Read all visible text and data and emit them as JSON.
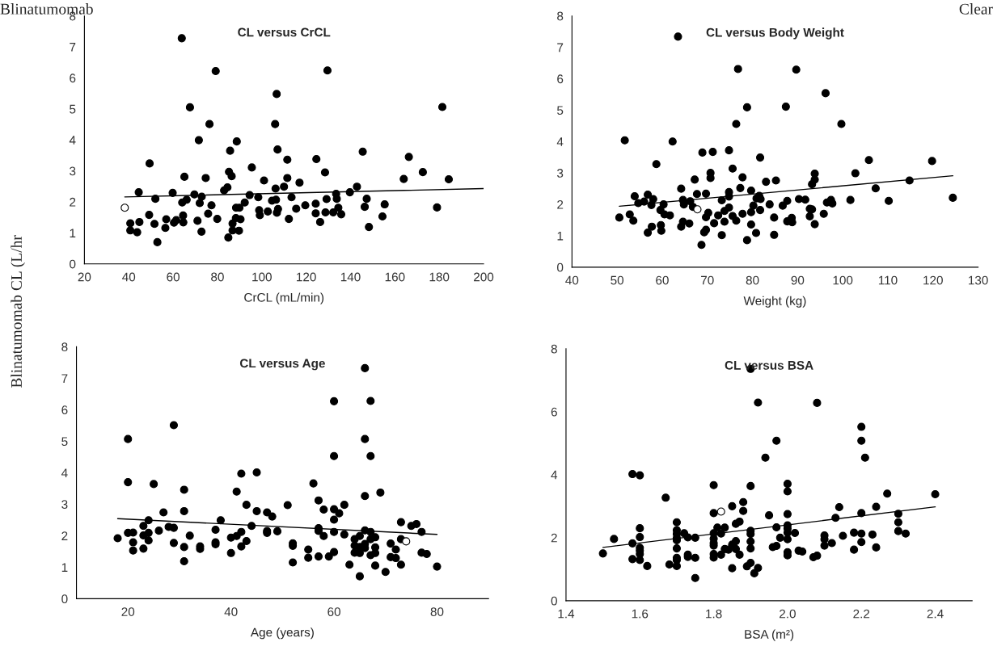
{
  "chart_data": [
    {
      "type": "scatter",
      "title": "CL versus CrCL",
      "xlabel": "CrCL (mL/min)",
      "ylabel": "Blinatumomab CL (L/hr",
      "annotations": [
        "Blinatumomab",
        "Clear"
      ],
      "marker": "circle",
      "xlim": [
        20,
        200
      ],
      "xticks": [
        20,
        40,
        60,
        80,
        100,
        120,
        140,
        160,
        180,
        200
      ],
      "ylim": [
        0,
        8
      ],
      "yticks": [
        0,
        1,
        2,
        3,
        4,
        5,
        6,
        7,
        8
      ],
      "series": [
        {
          "color": "#000000",
          "x": [
            63.9,
            79.2,
            129.6,
            106.7,
            67.6,
            181.4,
            76.4,
            106.0,
            71.6,
            88.7,
            85.7,
            107.1,
            145.5,
            49.4,
            95.5,
            111.5,
            124.6,
            166.3,
            172.6,
            128.5,
            85.2,
            86.4,
            65.1,
            74.7,
            101.0,
            111.5,
            164.0,
            184.3,
            117.0,
            142.9,
            84.5,
            83.0,
            110.0,
            106.2,
            44.5,
            59.8,
            139.7,
            69.6,
            94.5,
            133.5,
            72.9,
            98.4,
            113.4,
            52.0,
            129.2,
            133.8,
            147.3,
            66.1,
            106.4,
            64.1,
            72.0,
            92.3,
            104.6,
            124.3,
            119.6,
            155.4,
            77.3,
            88.4,
            89.9,
            134.5,
            146.4,
            179.0,
            98.8,
            102.7,
            107.3,
            115.5,
            75.8,
            49.2,
            124.3,
            128.7,
            132.2,
            135.8,
            154.4,
            64.5,
            99.1,
            106.8,
            56.9,
            61.4,
            79.9,
            88.3,
            90.4,
            112.2,
            44.8,
            40.7,
            51.6,
            64.6,
            71.0,
            60.4,
            86.8,
            126.3,
            40.7,
            43.8,
            56.5,
            72.8,
            86.8,
            89.7,
            148.3,
            84.9,
            52.9
          ],
          "values": [
            7.28,
            6.22,
            6.24,
            5.48,
            5.05,
            5.06,
            4.51,
            4.51,
            3.99,
            3.95,
            3.65,
            3.69,
            3.62,
            3.24,
            3.11,
            3.36,
            3.38,
            3.45,
            2.96,
            2.95,
            2.97,
            2.83,
            2.81,
            2.77,
            2.69,
            2.77,
            2.74,
            2.73,
            2.62,
            2.49,
            2.47,
            2.37,
            2.49,
            2.43,
            2.31,
            2.29,
            2.31,
            2.24,
            2.22,
            2.26,
            2.17,
            2.15,
            2.15,
            2.1,
            2.09,
            2.1,
            2.1,
            2.07,
            2.07,
            1.98,
            1.96,
            1.98,
            2.04,
            1.94,
            1.89,
            1.92,
            1.89,
            1.81,
            1.81,
            1.81,
            1.84,
            1.82,
            1.73,
            1.69,
            1.77,
            1.78,
            1.62,
            1.58,
            1.63,
            1.66,
            1.66,
            1.6,
            1.53,
            1.56,
            1.57,
            1.65,
            1.44,
            1.41,
            1.45,
            1.48,
            1.44,
            1.45,
            1.35,
            1.31,
            1.29,
            1.34,
            1.39,
            1.33,
            1.3,
            1.35,
            1.08,
            1.02,
            1.16,
            1.04,
            1.08,
            1.07,
            1.19,
            0.85,
            0.7
          ]
        },
        {
          "color": "#ffffff",
          "x": [
            38.2
          ],
          "values": [
            1.81
          ]
        },
        {
          "type": "line",
          "marker": "none",
          "color": "#000000",
          "x": [
            38.2,
            200
          ],
          "values": [
            2.16,
            2.43
          ]
        }
      ]
    },
    {
      "type": "scatter",
      "title": "CL versus Body Weight",
      "xlabel": "Weight (kg)",
      "marker": "circle",
      "xlim": [
        40,
        130
      ],
      "xticks": [
        40,
        50,
        60,
        70,
        80,
        90,
        100,
        110,
        120,
        130
      ],
      "ylim": [
        0,
        8
      ],
      "yticks": [
        0,
        1,
        2,
        3,
        4,
        5,
        6,
        7,
        8
      ],
      "series": [
        {
          "color": "#000000",
          "x": [
            63.5,
            51.7,
            62.3,
            58.7,
            68.9,
            71.2,
            74.8,
            76.4,
            76.8,
            89.7,
            78.8,
            87.4,
            96.2,
            99.7,
            81.7,
            75.6,
            105.8,
            119.8,
            70.7,
            70.7,
            93.8,
            102.8,
            77.8,
            67.2,
            83.0,
            85.2,
            93.8,
            93.2,
            114.8,
            64.2,
            77.3,
            79.7,
            107.3,
            74.8,
            74.8,
            67.7,
            69.7,
            56.8,
            53.9,
            58.0,
            81.5,
            80.9,
            81.8,
            90.3,
            91.7,
            124.4,
            64.6,
            66.2,
            73.2,
            87.7,
            97.4,
            101.7,
            110.2,
            56.0,
            54.7,
            57.6,
            60.3,
            64.8,
            83.8,
            86.7,
            96.5,
            97.7,
            66.8,
            80.2,
            74.8,
            59.6,
            81.7,
            92.7,
            93.2,
            73.8,
            70.2,
            77.8,
            79.7,
            95.8,
            52.8,
            60.5,
            61.7,
            72.4,
            75.6,
            69.7,
            84.8,
            88.7,
            92.7,
            50.5,
            53.6,
            64.6,
            73.8,
            76.4,
            71.5,
            87.7,
            88.8,
            66.0,
            59.7,
            79.7,
            93.8,
            57.7,
            64.2,
            59.8,
            69.7,
            56.8,
            69.3,
            80.8,
            73.2,
            84.8,
            78.8,
            68.7
          ],
          "values": [
            7.34,
            4.04,
            4.0,
            3.28,
            3.65,
            3.67,
            3.72,
            4.56,
            6.31,
            6.29,
            5.09,
            5.11,
            5.54,
            4.56,
            3.49,
            3.14,
            3.41,
            3.38,
            3.0,
            2.84,
            2.98,
            2.99,
            2.86,
            2.79,
            2.72,
            2.76,
            2.79,
            2.64,
            2.76,
            2.5,
            2.52,
            2.44,
            2.51,
            2.39,
            2.25,
            2.33,
            2.34,
            2.31,
            2.26,
            2.17,
            2.27,
            2.19,
            2.17,
            2.17,
            2.15,
            2.21,
            2.14,
            2.1,
            2.13,
            2.11,
            2.14,
            2.14,
            2.11,
            2.09,
            2.04,
            1.98,
            2.0,
            2.0,
            2.0,
            1.96,
            2.06,
            2.03,
            1.92,
            1.96,
            1.9,
            1.82,
            1.82,
            1.86,
            1.84,
            1.79,
            1.73,
            1.7,
            1.75,
            1.7,
            1.68,
            1.68,
            1.65,
            1.65,
            1.63,
            1.59,
            1.58,
            1.57,
            1.62,
            1.58,
            1.48,
            1.45,
            1.45,
            1.48,
            1.4,
            1.46,
            1.43,
            1.39,
            1.34,
            1.36,
            1.37,
            1.29,
            1.29,
            1.16,
            1.19,
            1.1,
            1.11,
            1.09,
            1.02,
            1.03,
            0.86,
            0.71
          ]
        },
        {
          "color": "#ffffff",
          "x": [
            67.8
          ],
          "values": [
            1.84
          ]
        },
        {
          "type": "line",
          "marker": "none",
          "color": "#000000",
          "x": [
            50.5,
            124.4
          ],
          "values": [
            1.94,
            2.91
          ]
        }
      ]
    },
    {
      "type": "scatter",
      "title": "CL versus Age",
      "xlabel": "Age (years)",
      "marker": "circle",
      "xlim": [
        10,
        90
      ],
      "xticks": [
        20,
        40,
        60,
        80
      ],
      "ylim": [
        0,
        8
      ],
      "yticks": [
        0,
        1,
        2,
        3,
        4,
        5,
        6,
        7,
        8
      ],
      "series": [
        {
          "color": "#000000",
          "x": [
            66.0,
            60.0,
            67.1,
            28.9,
            20.0,
            66.0,
            60.0,
            67.1,
            45.0,
            42.0,
            20.0,
            25.0,
            56.0,
            41.1,
            30.9,
            69.0,
            66.0,
            57.0,
            51.0,
            43.0,
            62.0,
            26.9,
            30.9,
            45.0,
            47.0,
            58.0,
            60.0,
            61.0,
            48.0,
            60.0,
            24.0,
            38.0,
            73.0,
            75.0,
            76.0,
            23.0,
            44.0,
            27.9,
            28.9,
            37.0,
            26.0,
            57.0,
            57.0,
            66.0,
            67.1,
            47.0,
            47.0,
            49.0,
            60.0,
            77.0,
            20.0,
            21.0,
            24.0,
            42.0,
            62.0,
            41.1,
            40.0,
            23.0,
            32.0,
            58.0,
            65.0,
            68.0,
            18.0,
            64.0,
            67.1,
            73.0,
            24.0,
            43.0,
            37.0,
            21.0,
            28.9,
            71.0,
            66.0,
            37.0,
            52.0,
            52.0,
            64.0,
            34.0,
            42.0,
            30.9,
            65.0,
            68.0,
            66.0,
            34.0,
            55.0,
            72.0,
            23.0,
            21.0,
            60.0,
            40.0,
            64.0,
            65.0,
            68.0,
            77.0,
            78.0,
            67.1,
            57.0,
            59.0,
            55.0,
            71.0,
            72.0,
            30.9,
            52.0,
            63.0,
            73.0,
            68.0,
            80.0,
            70.0,
            65.0
          ],
          "values": [
            7.32,
            6.27,
            6.28,
            5.51,
            5.07,
            5.07,
            4.53,
            4.53,
            4.01,
            3.97,
            3.7,
            3.64,
            3.66,
            3.4,
            3.46,
            3.37,
            3.26,
            3.12,
            2.97,
            2.98,
            2.98,
            2.74,
            2.78,
            2.78,
            2.74,
            2.83,
            2.84,
            2.71,
            2.61,
            2.51,
            2.49,
            2.49,
            2.43,
            2.31,
            2.37,
            2.31,
            2.31,
            2.28,
            2.25,
            2.19,
            2.16,
            2.24,
            2.15,
            2.17,
            2.12,
            2.15,
            2.09,
            2.14,
            2.12,
            2.12,
            2.09,
            2.1,
            2.09,
            2.12,
            2.04,
            1.99,
            1.94,
            2.01,
            2.0,
            1.99,
            1.99,
            1.95,
            1.92,
            1.89,
            1.89,
            1.89,
            1.85,
            1.83,
            1.79,
            1.79,
            1.77,
            1.75,
            1.74,
            1.73,
            1.76,
            1.68,
            1.69,
            1.66,
            1.66,
            1.64,
            1.64,
            1.63,
            1.61,
            1.58,
            1.56,
            1.56,
            1.59,
            1.53,
            1.48,
            1.45,
            1.46,
            1.45,
            1.45,
            1.46,
            1.42,
            1.38,
            1.34,
            1.34,
            1.3,
            1.32,
            1.29,
            1.19,
            1.15,
            1.08,
            1.08,
            1.05,
            1.02,
            0.85,
            0.71
          ]
        },
        {
          "color": "#ffffff",
          "x": [
            74.0
          ],
          "values": [
            1.82
          ]
        },
        {
          "type": "line",
          "marker": "none",
          "color": "#000000",
          "x": [
            18,
            80
          ],
          "values": [
            2.54,
            2.04
          ]
        }
      ]
    },
    {
      "type": "scatter",
      "title": "CL versus BSA",
      "xlabel": "BSA (m²)",
      "marker": "circle",
      "xlim": [
        1.4,
        2.5
      ],
      "xticks": [
        {
          "value": 1.4,
          "label": "1.4"
        },
        {
          "value": 1.6,
          "label": "1.6"
        },
        {
          "value": 1.8,
          "label": "1.8"
        },
        {
          "value": 2.0,
          "label": "2.0"
        },
        {
          "value": 2.2,
          "label": "2.2"
        },
        {
          "value": 2.4,
          "label": "2.4"
        }
      ],
      "ylim": [
        0,
        8
      ],
      "yticks": [
        0,
        2,
        4,
        6,
        8
      ],
      "series": [
        {
          "color": "#000000",
          "x": [
            1.9,
            1.92,
            2.08,
            2.2,
            1.97,
            2.2,
            1.94,
            2.21,
            1.58,
            1.6,
            1.8,
            1.9,
            2.0,
            2.0,
            1.67,
            2.27,
            2.4,
            1.88,
            1.85,
            2.14,
            2.24,
            1.88,
            1.8,
            2.2,
            2.3,
            1.95,
            2.0,
            2.13,
            1.87,
            1.86,
            1.7,
            2.3,
            2.0,
            1.6,
            1.81,
            1.83,
            1.97,
            2.0,
            1.9,
            1.7,
            2.3,
            1.72,
            1.8,
            1.82,
            2.0,
            2.02,
            2.18,
            2.2,
            2.32,
            2.23,
            1.7,
            1.9,
            2.1,
            2.15,
            1.6,
            1.73,
            1.75,
            1.7,
            1.8,
            1.98,
            2.0,
            1.53,
            1.7,
            2.1,
            1.86,
            1.9,
            1.8,
            2.2,
            1.58,
            2.12,
            2.1,
            1.8,
            1.85,
            1.97,
            1.96,
            1.6,
            2.24,
            1.9,
            1.7,
            1.83,
            1.84,
            1.86,
            2.18,
            1.6,
            2.03,
            2.04,
            2.0,
            1.5,
            1.6,
            1.8,
            1.82,
            1.87,
            1.73,
            2.0,
            1.73,
            2.08,
            2.07,
            1.75,
            1.8,
            1.58,
            1.7,
            1.7,
            1.6,
            1.9,
            1.68,
            1.62,
            1.7,
            1.89,
            1.85,
            1.92,
            1.91,
            1.75
          ],
          "values": [
            7.36,
            6.29,
            6.28,
            5.52,
            5.08,
            5.08,
            4.54,
            4.54,
            4.02,
            3.98,
            3.67,
            3.64,
            3.71,
            3.47,
            3.27,
            3.4,
            3.38,
            3.13,
            3.0,
            2.97,
            2.98,
            2.85,
            2.78,
            2.78,
            2.76,
            2.71,
            2.75,
            2.63,
            2.51,
            2.44,
            2.49,
            2.49,
            2.39,
            2.3,
            2.32,
            2.32,
            2.33,
            2.29,
            2.22,
            2.24,
            2.21,
            2.14,
            2.14,
            2.13,
            2.16,
            2.15,
            2.16,
            2.13,
            2.13,
            2.1,
            2.12,
            2.12,
            2.07,
            2.06,
            2.02,
            2.01,
            2.0,
            1.99,
            1.97,
            2.0,
            1.95,
            1.96,
            1.92,
            1.95,
            1.89,
            1.88,
            1.83,
            1.86,
            1.82,
            1.83,
            1.75,
            1.75,
            1.78,
            1.74,
            1.7,
            1.68,
            1.69,
            1.66,
            1.66,
            1.64,
            1.62,
            1.64,
            1.62,
            1.59,
            1.59,
            1.56,
            1.54,
            1.5,
            1.48,
            1.48,
            1.46,
            1.46,
            1.46,
            1.44,
            1.39,
            1.43,
            1.38,
            1.36,
            1.37,
            1.32,
            1.36,
            1.29,
            1.29,
            1.2,
            1.15,
            1.1,
            1.1,
            1.09,
            1.03,
            1.04,
            0.87,
            0.72
          ]
        },
        {
          "color": "#ffffff",
          "x": [
            1.82
          ],
          "values": [
            2.83
          ]
        },
        {
          "type": "line",
          "marker": "none",
          "color": "#000000",
          "x": [
            1.5,
            2.4
          ],
          "values": [
            1.69,
            2.98
          ]
        }
      ]
    }
  ]
}
